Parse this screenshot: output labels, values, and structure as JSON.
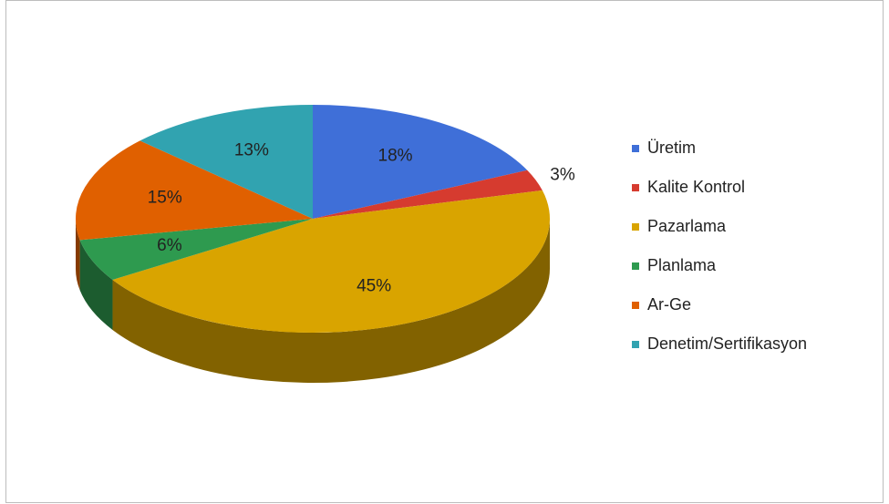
{
  "chart_data": {
    "type": "pie",
    "categories": [
      "Üretim",
      "Kalite Kontrol",
      "Pazarlama",
      "Planlama",
      "Ar-Ge",
      "Denetim/Sertifikasyon"
    ],
    "values": [
      18,
      3,
      45,
      6,
      15,
      13
    ],
    "value_labels": [
      "18%",
      "3%",
      "45%",
      "6%",
      "15%",
      "13%"
    ],
    "colors": [
      "#3f6fd8",
      "#d63b2f",
      "#d9a400",
      "#2e9a4f",
      "#e06000",
      "#31a3b0"
    ],
    "legend": "right"
  }
}
